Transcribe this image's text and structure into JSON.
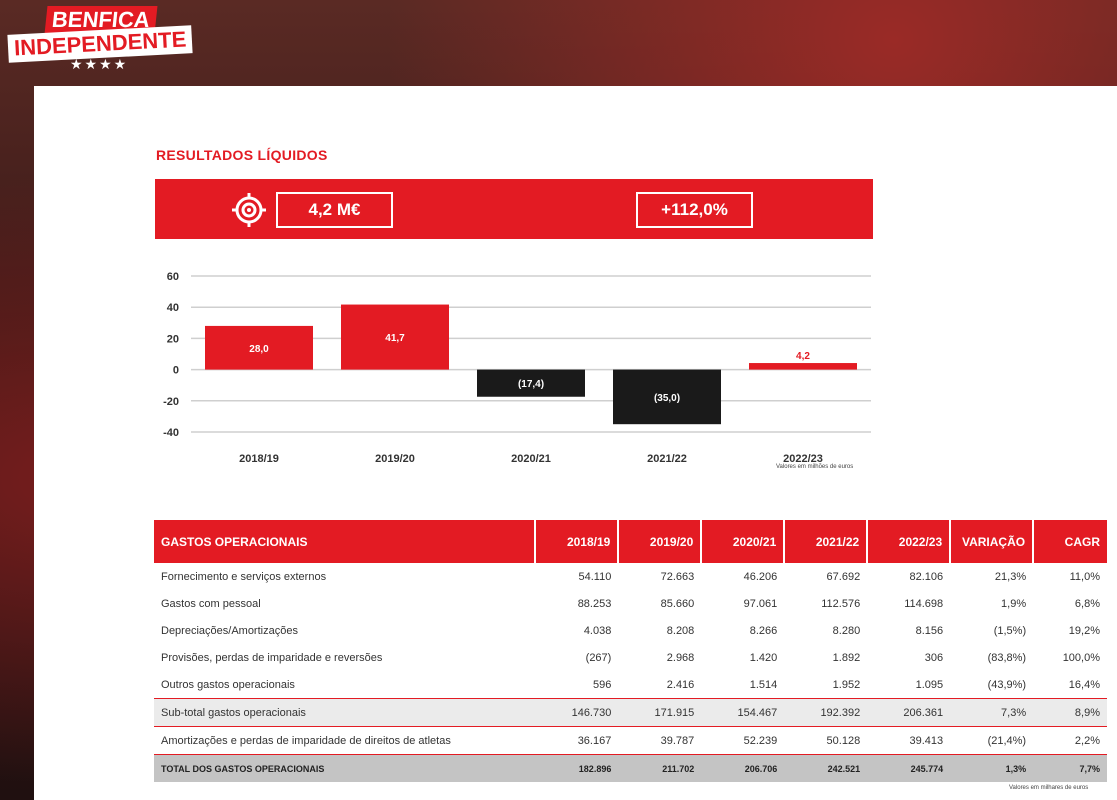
{
  "brand": {
    "line1": "BENFICA",
    "line2": "INDEPENDENTE",
    "stars": "★★★★",
    "colors": {
      "red": "#e31b23",
      "dark": "#1a1a1a"
    }
  },
  "section_title": "RESULTADOS LÍQUIDOS",
  "kpis": [
    {
      "value": "4,2 M€"
    },
    {
      "value": "+112,0%"
    }
  ],
  "icons": {
    "kpi_icon": "target-icon"
  },
  "chart_data": {
    "type": "bar",
    "title": "RESULTADOS LÍQUIDOS",
    "categories": [
      "2018/19",
      "2019/20",
      "2020/21",
      "2021/22",
      "2022/23"
    ],
    "values": [
      28.0,
      41.7,
      -17.4,
      -35.0,
      4.2
    ],
    "data_labels": [
      "28,0",
      "41,7",
      "(17,4)",
      "(35,0)",
      "4,2"
    ],
    "ylim": [
      -40,
      60
    ],
    "yticks": [
      60,
      40,
      20,
      0,
      -20,
      -40
    ],
    "grid": true,
    "colors": {
      "positive": "#e31b23",
      "negative": "#1a1a1a"
    }
  },
  "chart_note": "Valores em milhões de euros",
  "table": {
    "headers": [
      "GASTOS OPERACIONAIS",
      "2018/19",
      "2019/20",
      "2020/21",
      "2021/22",
      "2022/23",
      "VARIAÇÃO",
      "CAGR"
    ],
    "rows": [
      [
        "Fornecimento e serviços externos",
        "54.110",
        "72.663",
        "46.206",
        "67.692",
        "82.106",
        "21,3%",
        "11,0%"
      ],
      [
        "Gastos com pessoal",
        "88.253",
        "85.660",
        "97.061",
        "112.576",
        "114.698",
        "1,9%",
        "6,8%"
      ],
      [
        "Depreciações/Amortizações",
        "4.038",
        "8.208",
        "8.266",
        "8.280",
        "8.156",
        "(1,5%)",
        "19,2%"
      ],
      [
        "Provisões, perdas de imparidade e reversões",
        "(267)",
        "2.968",
        "1.420",
        "1.892",
        "306",
        "(83,8%)",
        "100,0%"
      ],
      [
        "Outros gastos operacionais",
        "596",
        "2.416",
        "1.514",
        "1.952",
        "1.095",
        "(43,9%)",
        "16,4%"
      ],
      [
        "Sub-total gastos operacionais",
        "146.730",
        "171.915",
        "154.467",
        "192.392",
        "206.361",
        "7,3%",
        "8,9%"
      ],
      [
        "Amortizações e perdas de imparidade de direitos de atletas",
        "36.167",
        "39.787",
        "52.239",
        "50.128",
        "39.413",
        "(21,4%)",
        "2,2%"
      ],
      [
        "TOTAL DOS GASTOS OPERACIONAIS",
        "182.896",
        "211.702",
        "206.706",
        "242.521",
        "245.774",
        "1,3%",
        "7,7%"
      ]
    ],
    "note": "Valores em milhares de euros"
  }
}
